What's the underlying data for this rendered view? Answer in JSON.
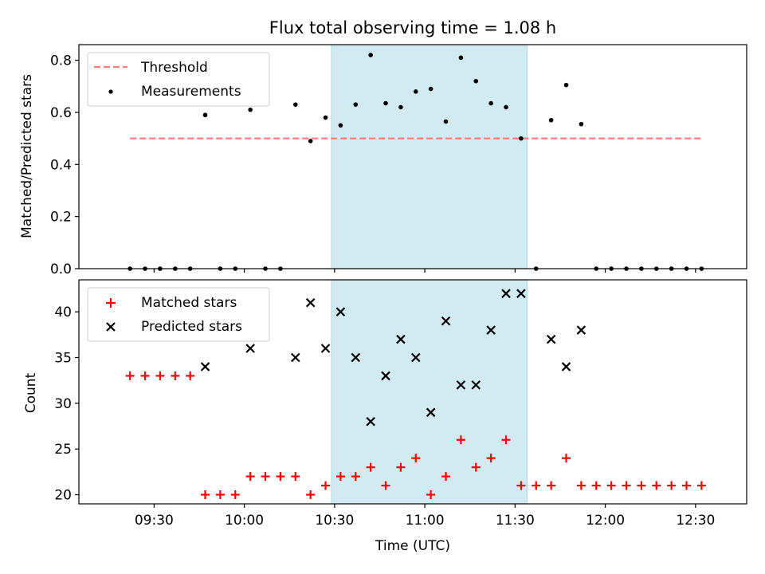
{
  "chart_data": {
    "type": "scatter",
    "title": "Flux total observing time = 1.08 h",
    "xlabel": "Time (UTC)",
    "x_tick_labels": [
      "09:30",
      "10:00",
      "10:30",
      "11:00",
      "11:30",
      "12:00",
      "12:30"
    ],
    "x_tick_minutes": [
      570,
      600,
      630,
      660,
      690,
      720,
      750
    ],
    "xlim_minutes": [
      545,
      767
    ],
    "highlight_span_minutes": [
      629,
      694
    ],
    "colors": {
      "threshold": "#ff7f7f",
      "span": "#add8e6",
      "matched": "#ff0000",
      "predicted": "#000000",
      "measurements": "#000000"
    },
    "top": {
      "ylabel": "Matched/Predicted stars",
      "ylim": [
        0,
        0.86
      ],
      "y_ticks": [
        0.0,
        0.2,
        0.4,
        0.6,
        0.8
      ],
      "y_tick_labels": [
        "0.0",
        "0.2",
        "0.4",
        "0.6",
        "0.8"
      ],
      "threshold": {
        "name": "Threshold",
        "value": 0.5,
        "x_range": [
          562,
          752
        ]
      },
      "measurements": {
        "name": "Measurements",
        "x": [
          562,
          567,
          572,
          577,
          582,
          587,
          592,
          597,
          602,
          607,
          612,
          617,
          622,
          627,
          632,
          637,
          642,
          647,
          652,
          657,
          662,
          667,
          672,
          677,
          682,
          687,
          692,
          697,
          702,
          707,
          712,
          717,
          722,
          727,
          732,
          737,
          742,
          747,
          752
        ],
        "y": [
          0,
          0,
          0,
          0,
          0,
          0.59,
          0,
          0,
          0.61,
          0,
          0,
          0.63,
          0.49,
          0.58,
          0.55,
          0.63,
          0.82,
          0.635,
          0.62,
          0.68,
          0.69,
          0.565,
          0.81,
          0.72,
          0.635,
          0.62,
          0.5,
          0,
          0.57,
          0.705,
          0.555,
          0,
          0,
          0,
          0,
          0,
          0,
          0,
          0
        ]
      }
    },
    "bottom": {
      "ylabel": "Count",
      "ylim": [
        19,
        43.5
      ],
      "y_ticks": [
        20,
        25,
        30,
        35,
        40
      ],
      "y_tick_labels": [
        "20",
        "25",
        "30",
        "35",
        "40"
      ],
      "matched": {
        "name": "Matched stars",
        "x": [
          562,
          567,
          572,
          577,
          582,
          587,
          592,
          597,
          602,
          607,
          612,
          617,
          622,
          627,
          632,
          637,
          642,
          647,
          652,
          657,
          662,
          667,
          672,
          677,
          682,
          687,
          692,
          697,
          702,
          707,
          712,
          717,
          722,
          727,
          732,
          737,
          742,
          747,
          752
        ],
        "y": [
          33,
          33,
          33,
          33,
          33,
          20,
          20,
          20,
          22,
          22,
          22,
          22,
          20,
          21,
          22,
          22,
          23,
          21,
          23,
          24,
          20,
          22,
          26,
          23,
          24,
          26,
          21,
          21,
          21,
          24,
          21,
          21,
          21,
          21,
          21,
          21,
          21,
          21,
          21
        ]
      },
      "predicted": {
        "name": "Predicted stars",
        "x": [
          587,
          602,
          617,
          622,
          627,
          632,
          637,
          642,
          647,
          652,
          657,
          662,
          667,
          672,
          677,
          682,
          687,
          692,
          702,
          707,
          712
        ],
        "y": [
          34,
          36,
          35,
          41,
          36,
          40,
          35,
          28,
          33,
          37,
          35,
          29,
          39,
          32,
          32,
          38,
          42,
          42,
          37,
          34,
          38
        ]
      }
    }
  }
}
